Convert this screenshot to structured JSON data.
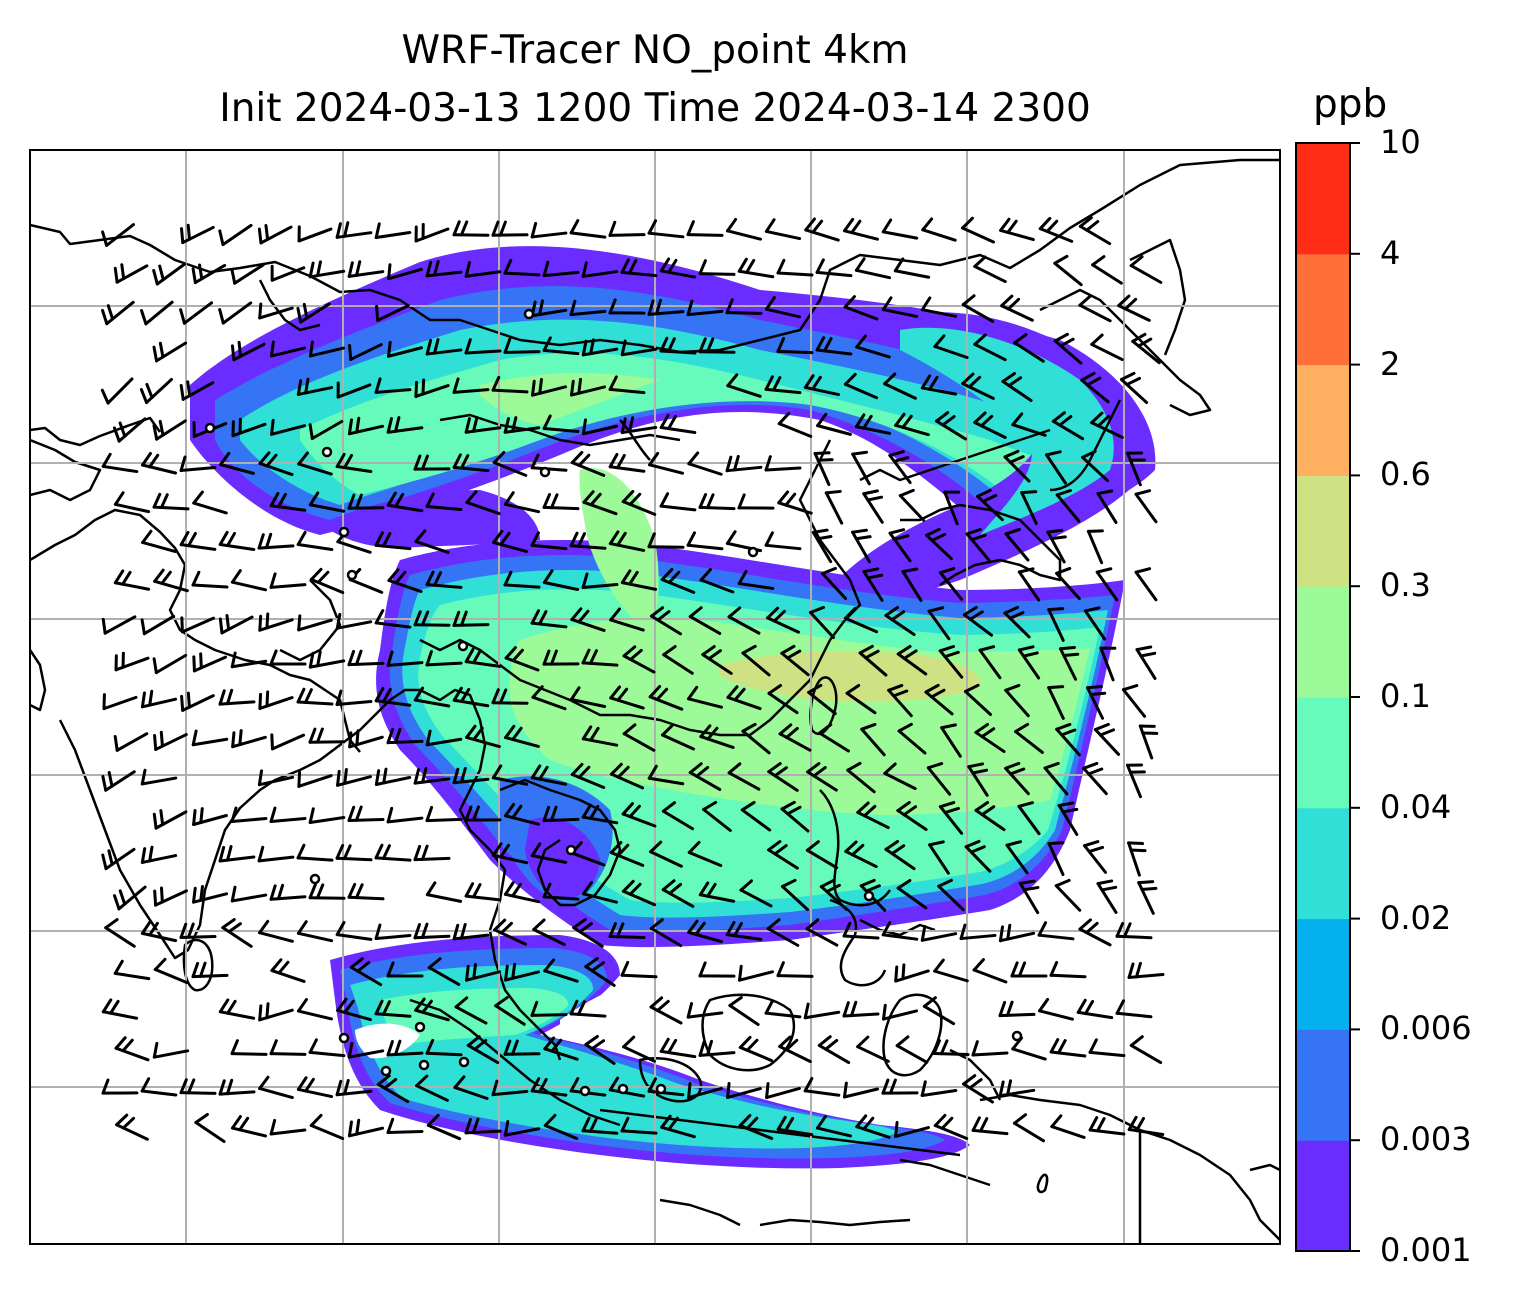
{
  "title_line1": "WRF-Tracer NO_point 4km",
  "title_line2": "Init 2024-03-13 1200 Time 2024-03-14 2300",
  "colorbar": {
    "unit": "ppb",
    "levels": [
      "0.001",
      "0.003",
      "0.006",
      "0.02",
      "0.04",
      "0.1",
      "0.3",
      "0.6",
      "2",
      "4",
      "10"
    ],
    "colors": [
      "#6a2cff",
      "#3574f5",
      "#05b0ee",
      "#30dfd5",
      "#66fbba",
      "#9cfa98",
      "#cfe283",
      "#ffb060",
      "#ff7038",
      "#ff2c16"
    ]
  },
  "map": {
    "field_colors": {
      "low": "#6a2cff",
      "low2": "#3574f5",
      "mid": "#30dfd5",
      "mid2": "#66fbba",
      "high": "#9cfa98",
      "high2": "#cfe283",
      "peak": "#ffb060"
    },
    "coastline_color": "#000000",
    "grid_color": "#b0b0b0",
    "barb_color": "#000000"
  }
}
